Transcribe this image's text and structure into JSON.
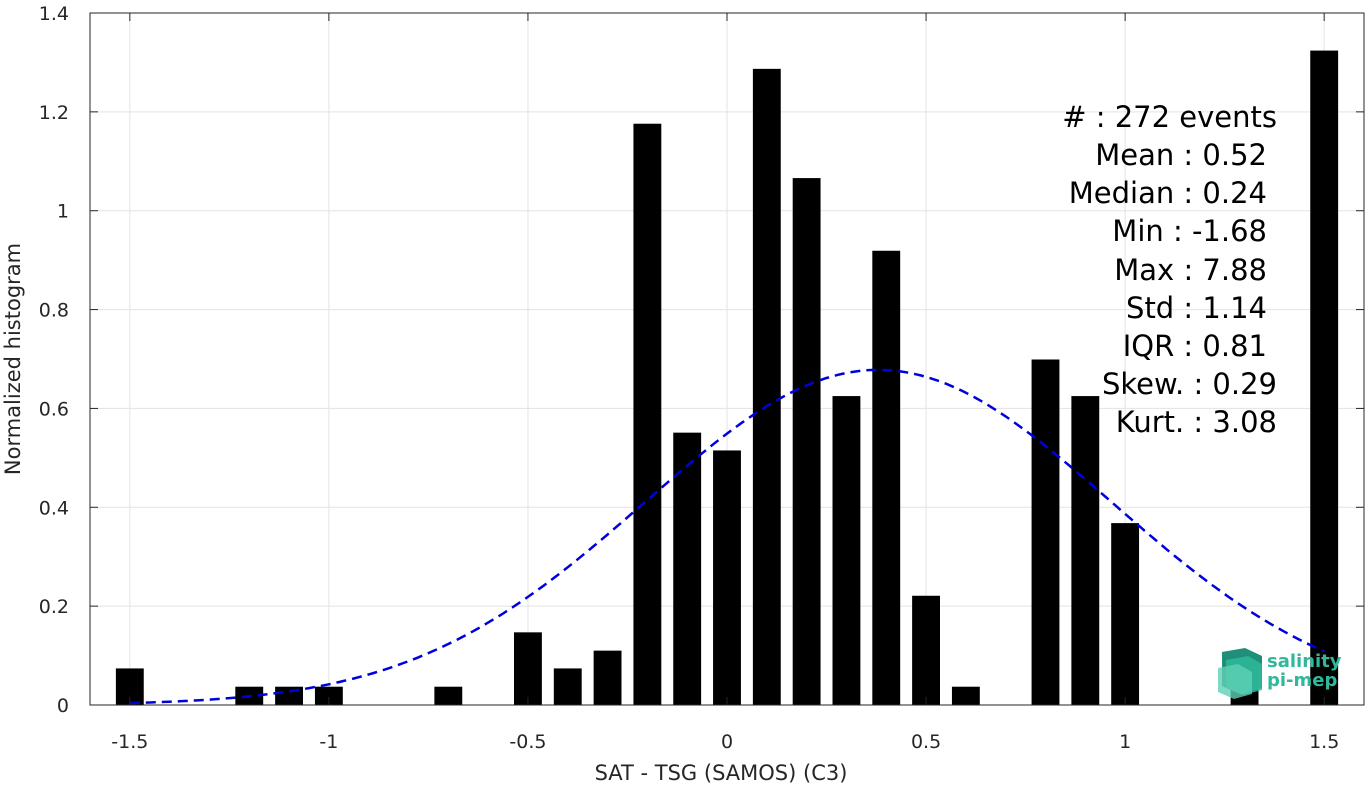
{
  "chart_data": {
    "type": "bar",
    "xlabel": "SAT - TSG (SAMOS) (C3)",
    "ylabel": "Normalized histogram",
    "xlim": [
      -1.6,
      1.6
    ],
    "ylim": [
      0,
      1.4
    ],
    "xticks": [
      -1.5,
      -1,
      -0.5,
      0,
      0.5,
      1,
      1.5
    ],
    "xtick_labels": [
      "-1.5",
      "-1",
      "-0.5",
      "0",
      "0.5",
      "1",
      "1.5"
    ],
    "yticks": [
      0,
      0.2,
      0.4,
      0.6,
      0.8,
      1,
      1.2,
      1.4
    ],
    "ytick_labels": [
      "0",
      "0.2",
      "0.4",
      "0.6",
      "0.8",
      "1",
      "1.2",
      "1.4"
    ],
    "grid": true,
    "bar_width": 0.07,
    "bar_color": "#000000",
    "bars": [
      {
        "x": -1.5,
        "y": 0.074
      },
      {
        "x": -1.2,
        "y": 0.037
      },
      {
        "x": -1.1,
        "y": 0.037
      },
      {
        "x": -1.0,
        "y": 0.037
      },
      {
        "x": -0.7,
        "y": 0.037
      },
      {
        "x": -0.5,
        "y": 0.147
      },
      {
        "x": -0.4,
        "y": 0.074
      },
      {
        "x": -0.3,
        "y": 0.11
      },
      {
        "x": -0.2,
        "y": 1.176
      },
      {
        "x": -0.1,
        "y": 0.551
      },
      {
        "x": 0.0,
        "y": 0.515
      },
      {
        "x": 0.1,
        "y": 1.287
      },
      {
        "x": 0.2,
        "y": 1.066
      },
      {
        "x": 0.3,
        "y": 0.625
      },
      {
        "x": 0.4,
        "y": 0.919
      },
      {
        "x": 0.5,
        "y": 0.221
      },
      {
        "x": 0.6,
        "y": 0.037
      },
      {
        "x": 0.8,
        "y": 0.699
      },
      {
        "x": 0.9,
        "y": 0.625
      },
      {
        "x": 1.0,
        "y": 0.368
      },
      {
        "x": 1.3,
        "y": 0.037
      },
      {
        "x": 1.5,
        "y": 1.324
      }
    ],
    "fit_curve": {
      "color": "#0000dd",
      "style": "dashed",
      "x_range": [
        -1.5,
        1.5
      ],
      "mean": 0.38,
      "std": 0.585,
      "peak": 0.678
    },
    "stats": [
      "#  : 272 events",
      "Mean : 0.52",
      "Median : 0.24",
      "Min : -1.68",
      "Max : 7.88",
      "Std : 1.14",
      "IQR : 0.81",
      "Skew. : 0.29",
      "Kurt. : 3.08"
    ]
  },
  "logo": {
    "line1": "salinity",
    "line2": "pi-mep",
    "color": "#2fb89a"
  }
}
